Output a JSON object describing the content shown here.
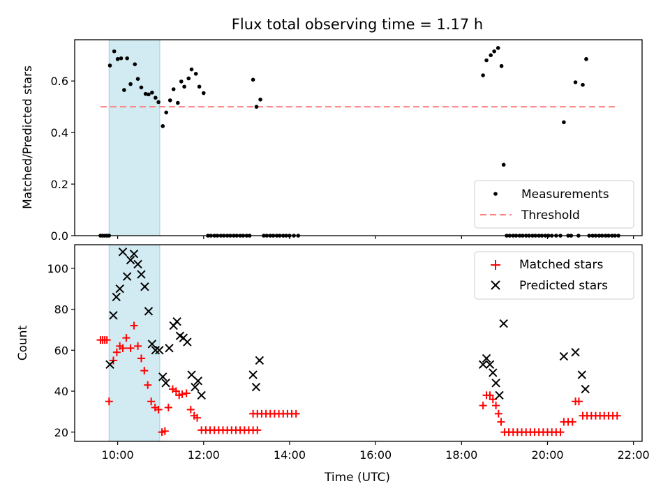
{
  "chart_data": [
    {
      "type": "scatter",
      "title": "Flux total observing time = 1.17 h",
      "xlabel": "",
      "ylabel": "Matched/Predicted stars",
      "xlim": [
        9.0,
        22.2
      ],
      "ylim": [
        0.0,
        0.76
      ],
      "yticks": [
        0.0,
        0.2,
        0.4,
        0.6
      ],
      "ytick_labels": [
        "0.0",
        "0.2",
        "0.4",
        "0.6"
      ],
      "grid": false,
      "legend_position": "lower-right",
      "shaded_span": [
        9.8,
        10.98
      ],
      "threshold": {
        "name": "Threshold",
        "value": 0.5,
        "x": [
          9.6,
          21.65
        ],
        "color": "#ff8080"
      },
      "series": [
        {
          "name": "Measurements",
          "color": "#000000",
          "points": [
            [
              9.6,
              0.0
            ],
            [
              9.65,
              0.0
            ],
            [
              9.7,
              0.0
            ],
            [
              9.75,
              0.0
            ],
            [
              9.8,
              0.0
            ],
            [
              9.82,
              0.66
            ],
            [
              9.92,
              0.715
            ],
            [
              10.0,
              0.685
            ],
            [
              10.08,
              0.688
            ],
            [
              10.15,
              0.565
            ],
            [
              10.22,
              0.688
            ],
            [
              10.3,
              0.588
            ],
            [
              10.4,
              0.665
            ],
            [
              10.47,
              0.608
            ],
            [
              10.55,
              0.575
            ],
            [
              10.65,
              0.55
            ],
            [
              10.72,
              0.548
            ],
            [
              10.8,
              0.555
            ],
            [
              10.88,
              0.535
            ],
            [
              10.95,
              0.518
            ],
            [
              11.05,
              0.425
            ],
            [
              11.13,
              0.478
            ],
            [
              11.22,
              0.525
            ],
            [
              11.3,
              0.568
            ],
            [
              11.4,
              0.515
            ],
            [
              11.48,
              0.598
            ],
            [
              11.55,
              0.578
            ],
            [
              11.65,
              0.61
            ],
            [
              11.72,
              0.645
            ],
            [
              11.82,
              0.628
            ],
            [
              11.9,
              0.578
            ],
            [
              12.0,
              0.553
            ],
            [
              12.1,
              0.0
            ],
            [
              12.17,
              0.0
            ],
            [
              12.25,
              0.0
            ],
            [
              12.32,
              0.0
            ],
            [
              12.4,
              0.0
            ],
            [
              12.47,
              0.0
            ],
            [
              12.55,
              0.0
            ],
            [
              12.62,
              0.0
            ],
            [
              12.7,
              0.0
            ],
            [
              12.77,
              0.0
            ],
            [
              12.85,
              0.0
            ],
            [
              12.92,
              0.0
            ],
            [
              13.0,
              0.0
            ],
            [
              13.07,
              0.0
            ],
            [
              13.15,
              0.605
            ],
            [
              13.23,
              0.5
            ],
            [
              13.32,
              0.528
            ],
            [
              13.4,
              0.0
            ],
            [
              13.47,
              0.0
            ],
            [
              13.55,
              0.0
            ],
            [
              13.62,
              0.0
            ],
            [
              13.7,
              0.0
            ],
            [
              13.77,
              0.0
            ],
            [
              13.85,
              0.0
            ],
            [
              13.92,
              0.0
            ],
            [
              14.0,
              0.0
            ],
            [
              14.1,
              0.0
            ],
            [
              14.2,
              0.0
            ],
            [
              18.5,
              0.622
            ],
            [
              18.58,
              0.68
            ],
            [
              18.68,
              0.7
            ],
            [
              18.76,
              0.715
            ],
            [
              18.85,
              0.728
            ],
            [
              18.93,
              0.658
            ],
            [
              18.98,
              0.275
            ],
            [
              19.05,
              0.0
            ],
            [
              19.12,
              0.0
            ],
            [
              19.2,
              0.0
            ],
            [
              19.27,
              0.0
            ],
            [
              19.35,
              0.0
            ],
            [
              19.42,
              0.0
            ],
            [
              19.5,
              0.0
            ],
            [
              19.57,
              0.0
            ],
            [
              19.65,
              0.0
            ],
            [
              19.72,
              0.0
            ],
            [
              19.8,
              0.0
            ],
            [
              19.87,
              0.0
            ],
            [
              19.95,
              0.0
            ],
            [
              20.02,
              0.0
            ],
            [
              20.1,
              0.0
            ],
            [
              20.2,
              0.0
            ],
            [
              20.3,
              0.0
            ],
            [
              20.38,
              0.44
            ],
            [
              20.48,
              0.0
            ],
            [
              20.55,
              0.0
            ],
            [
              20.65,
              0.595
            ],
            [
              20.82,
              0.585
            ],
            [
              20.9,
              0.685
            ],
            [
              20.72,
              0.0
            ],
            [
              20.97,
              0.0
            ],
            [
              21.05,
              0.0
            ],
            [
              21.12,
              0.0
            ],
            [
              21.2,
              0.0
            ],
            [
              21.27,
              0.0
            ],
            [
              21.35,
              0.0
            ],
            [
              21.42,
              0.0
            ],
            [
              21.5,
              0.0
            ],
            [
              21.57,
              0.0
            ],
            [
              21.65,
              0.0
            ]
          ]
        }
      ]
    },
    {
      "type": "scatter",
      "xlabel": "Time (UTC)",
      "ylabel": "Count",
      "xlim": [
        9.0,
        22.2
      ],
      "ylim": [
        15.5,
        111.5
      ],
      "xticks": [
        10,
        12,
        14,
        16,
        18,
        20,
        22
      ],
      "xtick_labels": [
        "10:00",
        "12:00",
        "14:00",
        "16:00",
        "18:00",
        "20:00",
        "22:00"
      ],
      "yticks": [
        20,
        40,
        60,
        80,
        100
      ],
      "ytick_labels": [
        "20",
        "40",
        "60",
        "80",
        "100"
      ],
      "grid": false,
      "legend_position": "upper-right",
      "shaded_span": [
        9.8,
        10.98
      ],
      "series": [
        {
          "name": "Matched stars",
          "marker": "plus",
          "color": "#ff0000",
          "points": [
            [
              9.6,
              65
            ],
            [
              9.65,
              65
            ],
            [
              9.7,
              65
            ],
            [
              9.75,
              65
            ],
            [
              9.8,
              35
            ],
            [
              9.9,
              55
            ],
            [
              9.98,
              59
            ],
            [
              10.05,
              62
            ],
            [
              10.12,
              61
            ],
            [
              10.2,
              66
            ],
            [
              10.3,
              61
            ],
            [
              10.38,
              72
            ],
            [
              10.47,
              62
            ],
            [
              10.55,
              56
            ],
            [
              10.62,
              50
            ],
            [
              10.7,
              43
            ],
            [
              10.78,
              35
            ],
            [
              10.87,
              32
            ],
            [
              10.95,
              31
            ],
            [
              11.03,
              20
            ],
            [
              11.1,
              20.5
            ],
            [
              11.18,
              32
            ],
            [
              11.28,
              41
            ],
            [
              11.36,
              40
            ],
            [
              11.43,
              38
            ],
            [
              11.5,
              38.5
            ],
            [
              11.6,
              39
            ],
            [
              11.7,
              31
            ],
            [
              11.78,
              28
            ],
            [
              11.85,
              27
            ],
            [
              11.95,
              21
            ],
            [
              12.05,
              21
            ],
            [
              12.15,
              21
            ],
            [
              12.25,
              21
            ],
            [
              12.35,
              21
            ],
            [
              12.45,
              21
            ],
            [
              12.55,
              21
            ],
            [
              12.65,
              21
            ],
            [
              12.75,
              21
            ],
            [
              12.85,
              21
            ],
            [
              12.95,
              21
            ],
            [
              13.05,
              21
            ],
            [
              13.15,
              21
            ],
            [
              13.25,
              21
            ],
            [
              13.15,
              29
            ],
            [
              13.25,
              29
            ],
            [
              13.35,
              29
            ],
            [
              13.45,
              29
            ],
            [
              13.55,
              29
            ],
            [
              13.65,
              29
            ],
            [
              13.75,
              29
            ],
            [
              13.85,
              29
            ],
            [
              13.95,
              29
            ],
            [
              14.05,
              29
            ],
            [
              14.15,
              29
            ],
            [
              18.5,
              33
            ],
            [
              18.58,
              38
            ],
            [
              18.66,
              38
            ],
            [
              18.73,
              36
            ],
            [
              18.8,
              33
            ],
            [
              18.86,
              29
            ],
            [
              18.92,
              25
            ],
            [
              19.0,
              20
            ],
            [
              19.1,
              20
            ],
            [
              19.2,
              20
            ],
            [
              19.3,
              20
            ],
            [
              19.4,
              20
            ],
            [
              19.5,
              20
            ],
            [
              19.6,
              20
            ],
            [
              19.7,
              20
            ],
            [
              19.8,
              20
            ],
            [
              19.9,
              20
            ],
            [
              20.0,
              20
            ],
            [
              20.1,
              20
            ],
            [
              20.2,
              20
            ],
            [
              20.3,
              20
            ],
            [
              20.38,
              25
            ],
            [
              20.48,
              25
            ],
            [
              20.58,
              25
            ],
            [
              20.65,
              35
            ],
            [
              20.73,
              35
            ],
            [
              20.82,
              28
            ],
            [
              20.92,
              28
            ],
            [
              21.02,
              28
            ],
            [
              21.12,
              28
            ],
            [
              21.22,
              28
            ],
            [
              21.32,
              28
            ],
            [
              21.42,
              28
            ],
            [
              21.52,
              28
            ],
            [
              21.62,
              28
            ]
          ]
        },
        {
          "name": "Predicted stars",
          "marker": "x",
          "color": "#000000",
          "points": [
            [
              9.82,
              53
            ],
            [
              9.9,
              77
            ],
            [
              9.97,
              86
            ],
            [
              10.05,
              90
            ],
            [
              10.12,
              108
            ],
            [
              10.22,
              96
            ],
            [
              10.3,
              104
            ],
            [
              10.38,
              107
            ],
            [
              10.47,
              102
            ],
            [
              10.55,
              97
            ],
            [
              10.63,
              91
            ],
            [
              10.72,
              79
            ],
            [
              10.8,
              63
            ],
            [
              10.88,
              60
            ],
            [
              10.97,
              60
            ],
            [
              11.05,
              47
            ],
            [
              11.12,
              44
            ],
            [
              11.2,
              61
            ],
            [
              11.3,
              72
            ],
            [
              11.38,
              74
            ],
            [
              11.45,
              67
            ],
            [
              11.53,
              66
            ],
            [
              11.62,
              64
            ],
            [
              11.72,
              48
            ],
            [
              11.8,
              42
            ],
            [
              11.87,
              45
            ],
            [
              11.95,
              38
            ],
            [
              13.15,
              48
            ],
            [
              13.22,
              42
            ],
            [
              13.3,
              55
            ],
            [
              18.5,
              53
            ],
            [
              18.58,
              56
            ],
            [
              18.66,
              53
            ],
            [
              18.73,
              49
            ],
            [
              18.8,
              44
            ],
            [
              18.88,
              38
            ],
            [
              18.98,
              73
            ],
            [
              20.38,
              57
            ],
            [
              20.65,
              59
            ],
            [
              20.8,
              48
            ],
            [
              20.88,
              41
            ]
          ]
        }
      ]
    }
  ]
}
